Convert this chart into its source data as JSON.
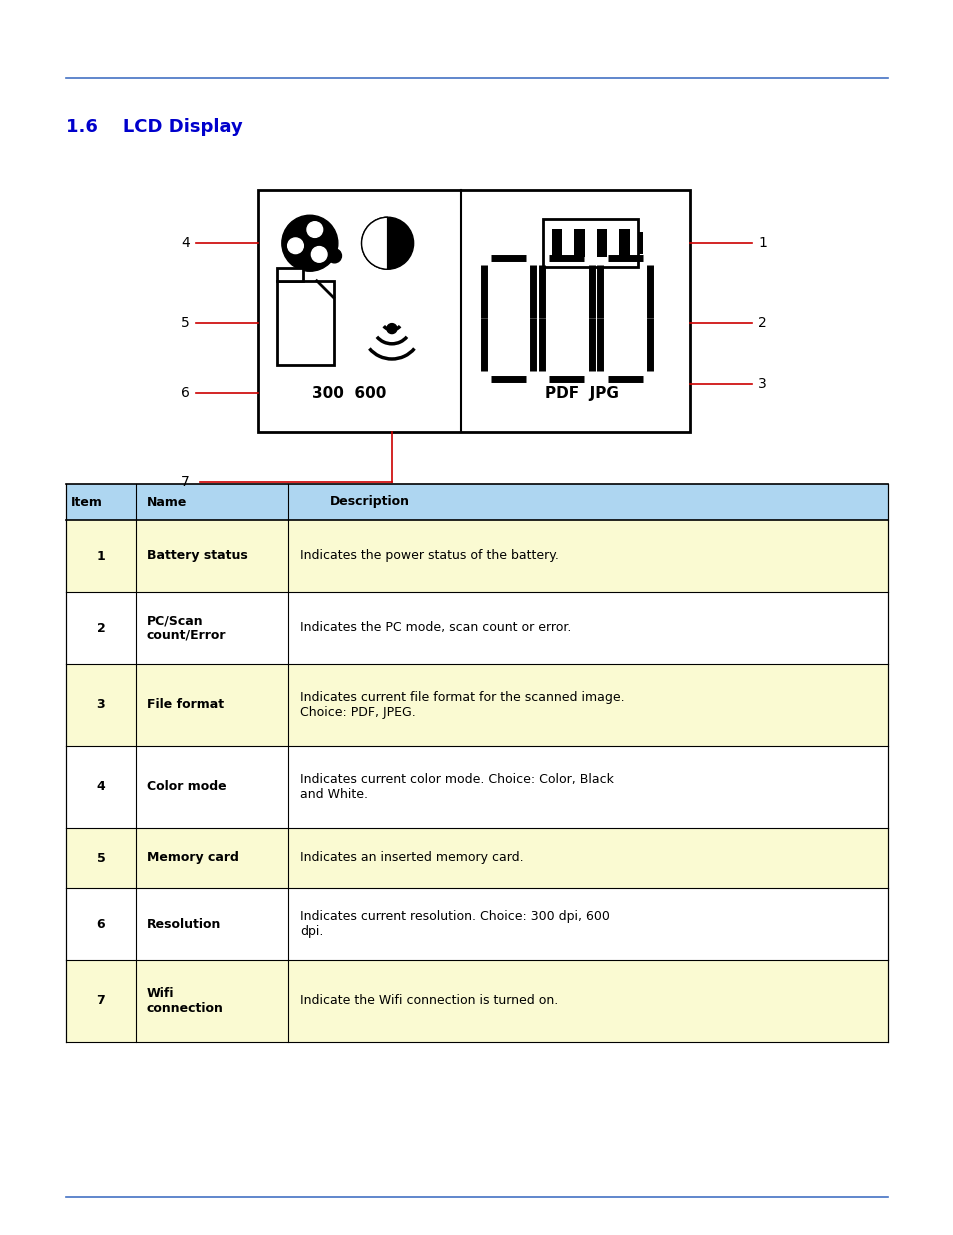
{
  "title": "1.6    LCD Display",
  "title_color": "#0000CC",
  "title_fontsize": 13,
  "page_bg": "#ffffff",
  "top_line_color": "#4472C4",
  "bottom_line_color": "#4472C4",
  "table_header_bg": "#AED6F1",
  "table_row_odd_bg": "#FAFAD2",
  "table_row_even_bg": "#ffffff",
  "red_color": "#CC0000",
  "table_data": [
    {
      "item": "1",
      "name": "Battery status",
      "description": "Indicates the power status of the battery.",
      "name_bold": true
    },
    {
      "item": "2",
      "name": "PC/Scan\ncount/Error",
      "description": "Indicates the PC mode, scan count or error.",
      "name_bold": false
    },
    {
      "item": "3",
      "name": "File format",
      "description": "Indicates current file format for the scanned image.\nChoice: PDF, JPEG.",
      "name_bold": true
    },
    {
      "item": "4",
      "name": "Color mode",
      "description": "Indicates current color mode. Choice: Color, Black\nand White.",
      "name_bold": false
    },
    {
      "item": "5",
      "name": "Memory card",
      "description": "Indicates an inserted memory card.",
      "name_bold": true
    },
    {
      "item": "6",
      "name": "Resolution",
      "description": "Indicates current resolution. Choice: 300 dpi, 600\ndpi.",
      "name_bold": false
    },
    {
      "item": "7",
      "name": "Wifi\nconnection",
      "description": "Indicate the Wifi connection is turned on.",
      "name_bold": true
    }
  ]
}
